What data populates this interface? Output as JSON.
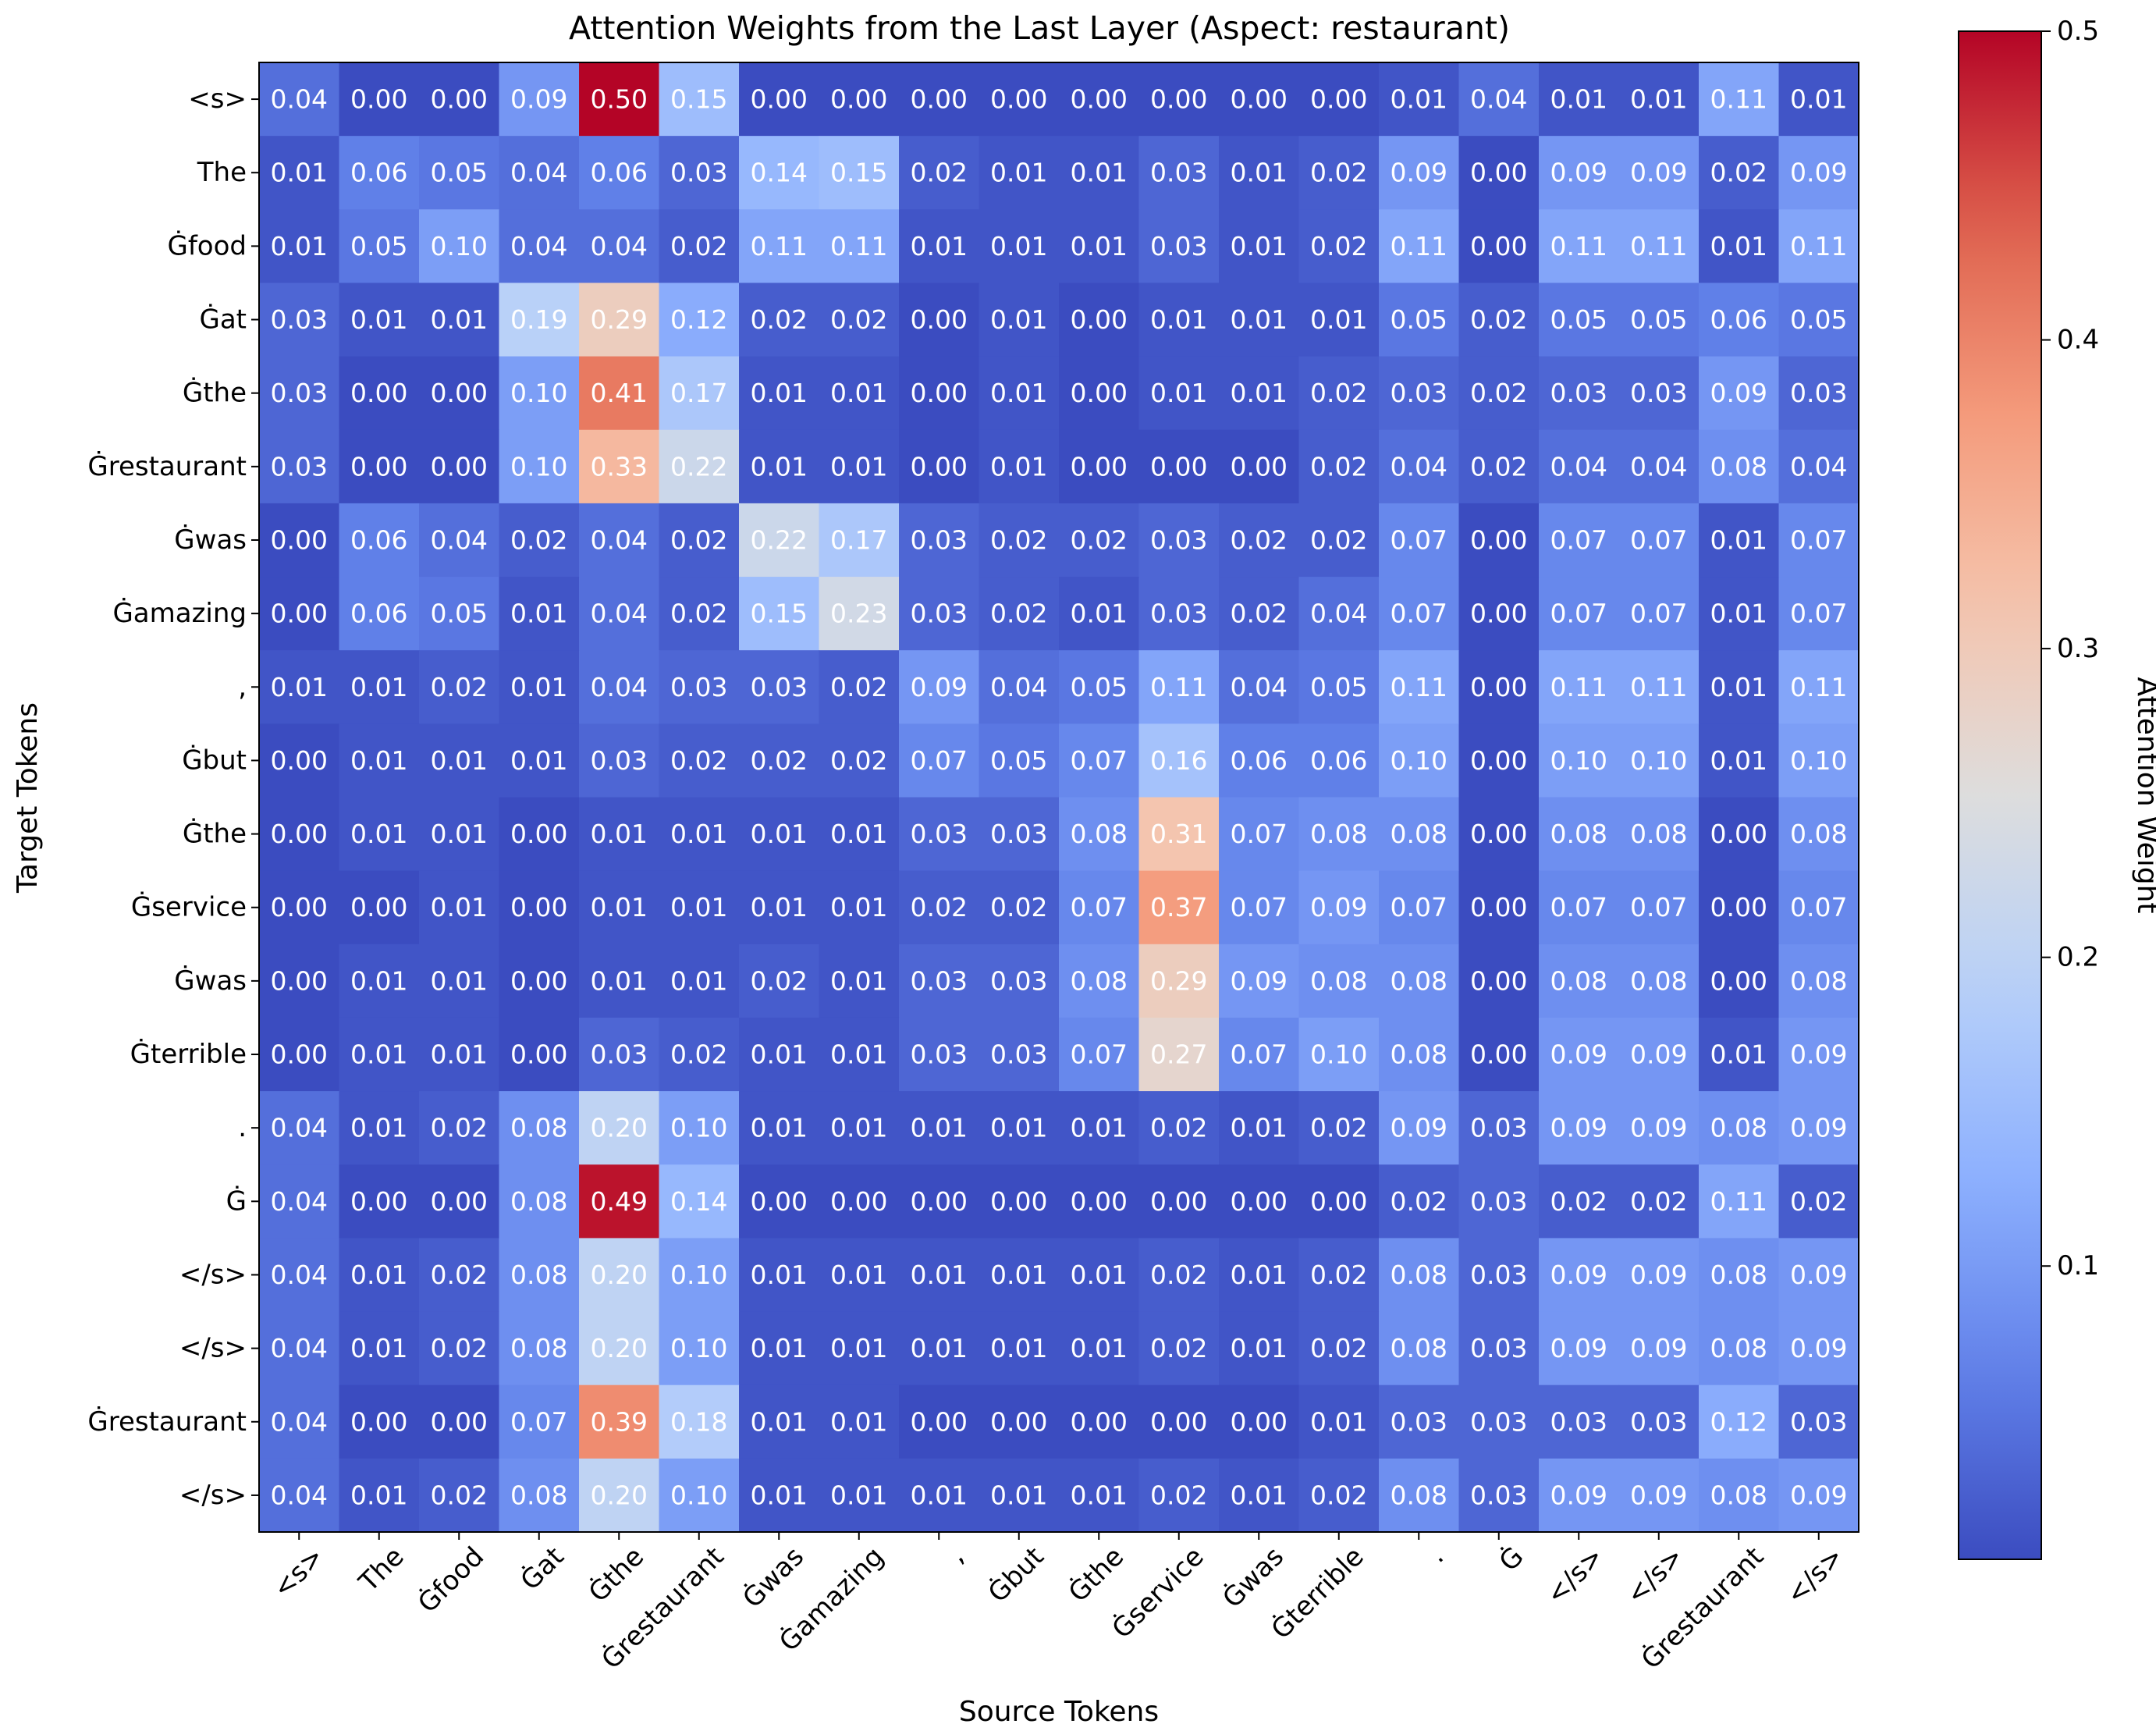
{
  "chart_data": {
    "type": "heatmap",
    "title": "Attention Weights from the Last Layer (Aspect: restaurant)",
    "xlabel": "Source Tokens",
    "ylabel": "Target Tokens",
    "x_tokens": [
      "<s>",
      "The",
      "Ġfood",
      "Ġat",
      "Ġthe",
      "Ġrestaurant",
      "Ġwas",
      "Ġamazing",
      ",",
      "Ġbut",
      "Ġthe",
      "Ġservice",
      "Ġwas",
      "Ġterrible",
      ".",
      "Ġ",
      "</s>",
      "</s>",
      "Ġrestaurant",
      "</s>"
    ],
    "y_tokens": [
      "<s>",
      "The",
      "Ġfood",
      "Ġat",
      "Ġthe",
      "Ġrestaurant",
      "Ġwas",
      "Ġamazing",
      ",",
      "Ġbut",
      "Ġthe",
      "Ġservice",
      "Ġwas",
      "Ġterrible",
      ".",
      "Ġ",
      "</s>",
      "</s>",
      "Ġrestaurant",
      "</s>"
    ],
    "values": [
      [
        0.04,
        0.0,
        0.0,
        0.09,
        0.5,
        0.15,
        0.0,
        0.0,
        0.0,
        0.0,
        0.0,
        0.0,
        0.0,
        0.0,
        0.01,
        0.04,
        0.01,
        0.01,
        0.11,
        0.01
      ],
      [
        0.01,
        0.06,
        0.05,
        0.04,
        0.06,
        0.03,
        0.14,
        0.15,
        0.02,
        0.01,
        0.01,
        0.03,
        0.01,
        0.02,
        0.09,
        0.0,
        0.09,
        0.09,
        0.02,
        0.09
      ],
      [
        0.01,
        0.05,
        0.1,
        0.04,
        0.04,
        0.02,
        0.11,
        0.11,
        0.01,
        0.01,
        0.01,
        0.03,
        0.01,
        0.02,
        0.11,
        0.0,
        0.11,
        0.11,
        0.01,
        0.11
      ],
      [
        0.03,
        0.01,
        0.01,
        0.19,
        0.29,
        0.12,
        0.02,
        0.02,
        0.0,
        0.01,
        0.0,
        0.01,
        0.01,
        0.01,
        0.05,
        0.02,
        0.05,
        0.05,
        0.06,
        0.05
      ],
      [
        0.03,
        0.0,
        0.0,
        0.1,
        0.41,
        0.17,
        0.01,
        0.01,
        0.0,
        0.01,
        0.0,
        0.01,
        0.01,
        0.02,
        0.03,
        0.02,
        0.03,
        0.03,
        0.09,
        0.03
      ],
      [
        0.03,
        0.0,
        0.0,
        0.1,
        0.33,
        0.22,
        0.01,
        0.01,
        0.0,
        0.01,
        0.0,
        0.0,
        0.0,
        0.02,
        0.04,
        0.02,
        0.04,
        0.04,
        0.08,
        0.04
      ],
      [
        0.0,
        0.06,
        0.04,
        0.02,
        0.04,
        0.02,
        0.22,
        0.17,
        0.03,
        0.02,
        0.02,
        0.03,
        0.02,
        0.02,
        0.07,
        0.0,
        0.07,
        0.07,
        0.01,
        0.07
      ],
      [
        0.0,
        0.06,
        0.05,
        0.01,
        0.04,
        0.02,
        0.15,
        0.23,
        0.03,
        0.02,
        0.01,
        0.03,
        0.02,
        0.04,
        0.07,
        0.0,
        0.07,
        0.07,
        0.01,
        0.07
      ],
      [
        0.01,
        0.01,
        0.02,
        0.01,
        0.04,
        0.03,
        0.03,
        0.02,
        0.09,
        0.04,
        0.05,
        0.11,
        0.04,
        0.05,
        0.11,
        0.0,
        0.11,
        0.11,
        0.01,
        0.11
      ],
      [
        0.0,
        0.01,
        0.01,
        0.01,
        0.03,
        0.02,
        0.02,
        0.02,
        0.07,
        0.05,
        0.07,
        0.16,
        0.06,
        0.06,
        0.1,
        0.0,
        0.1,
        0.1,
        0.01,
        0.1
      ],
      [
        0.0,
        0.01,
        0.01,
        0.0,
        0.01,
        0.01,
        0.01,
        0.01,
        0.03,
        0.03,
        0.08,
        0.31,
        0.07,
        0.08,
        0.08,
        0.0,
        0.08,
        0.08,
        0.0,
        0.08
      ],
      [
        0.0,
        0.0,
        0.01,
        0.0,
        0.01,
        0.01,
        0.01,
        0.01,
        0.02,
        0.02,
        0.07,
        0.37,
        0.07,
        0.09,
        0.07,
        0.0,
        0.07,
        0.07,
        0.0,
        0.07
      ],
      [
        0.0,
        0.01,
        0.01,
        0.0,
        0.01,
        0.01,
        0.02,
        0.01,
        0.03,
        0.03,
        0.08,
        0.29,
        0.09,
        0.08,
        0.08,
        0.0,
        0.08,
        0.08,
        0.0,
        0.08
      ],
      [
        0.0,
        0.01,
        0.01,
        0.0,
        0.03,
        0.02,
        0.01,
        0.01,
        0.03,
        0.03,
        0.07,
        0.27,
        0.07,
        0.1,
        0.08,
        0.0,
        0.09,
        0.09,
        0.01,
        0.09
      ],
      [
        0.04,
        0.01,
        0.02,
        0.08,
        0.2,
        0.1,
        0.01,
        0.01,
        0.01,
        0.01,
        0.01,
        0.02,
        0.01,
        0.02,
        0.09,
        0.03,
        0.09,
        0.09,
        0.08,
        0.09
      ],
      [
        0.04,
        0.0,
        0.0,
        0.08,
        0.49,
        0.14,
        0.0,
        0.0,
        0.0,
        0.0,
        0.0,
        0.0,
        0.0,
        0.0,
        0.02,
        0.03,
        0.02,
        0.02,
        0.11,
        0.02
      ],
      [
        0.04,
        0.01,
        0.02,
        0.08,
        0.2,
        0.1,
        0.01,
        0.01,
        0.01,
        0.01,
        0.01,
        0.02,
        0.01,
        0.02,
        0.08,
        0.03,
        0.09,
        0.09,
        0.08,
        0.09
      ],
      [
        0.04,
        0.01,
        0.02,
        0.08,
        0.2,
        0.1,
        0.01,
        0.01,
        0.01,
        0.01,
        0.01,
        0.02,
        0.01,
        0.02,
        0.08,
        0.03,
        0.09,
        0.09,
        0.08,
        0.09
      ],
      [
        0.04,
        0.0,
        0.0,
        0.07,
        0.39,
        0.18,
        0.01,
        0.01,
        0.0,
        0.0,
        0.0,
        0.0,
        0.0,
        0.01,
        0.03,
        0.03,
        0.03,
        0.03,
        0.12,
        0.03
      ],
      [
        0.04,
        0.01,
        0.02,
        0.08,
        0.2,
        0.1,
        0.01,
        0.01,
        0.01,
        0.01,
        0.01,
        0.02,
        0.01,
        0.02,
        0.08,
        0.03,
        0.09,
        0.09,
        0.08,
        0.09
      ]
    ],
    "colormap": "coolwarm",
    "vmin": 0.0,
    "vmax": 0.5,
    "colorbar": {
      "label": "Attention Weight",
      "ticks": [
        0.1,
        0.2,
        0.3,
        0.4,
        0.5
      ],
      "tick_labels": [
        "0.1",
        "0.2",
        "0.3",
        "0.4",
        "0.5"
      ]
    },
    "grid": false
  }
}
